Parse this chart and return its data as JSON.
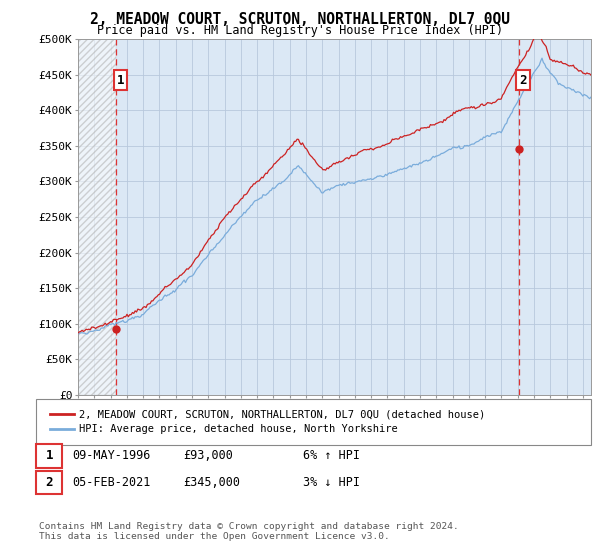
{
  "title": "2, MEADOW COURT, SCRUTON, NORTHALLERTON, DL7 0QU",
  "subtitle": "Price paid vs. HM Land Registry's House Price Index (HPI)",
  "ylim": [
    0,
    500000
  ],
  "yticks": [
    0,
    50000,
    100000,
    150000,
    200000,
    250000,
    300000,
    350000,
    400000,
    450000,
    500000
  ],
  "ytick_labels": [
    "£0",
    "£50K",
    "£100K",
    "£150K",
    "£200K",
    "£250K",
    "£300K",
    "£350K",
    "£400K",
    "£450K",
    "£500K"
  ],
  "xlim_start": 1994.0,
  "xlim_end": 2025.5,
  "hpi_color": "#7aacdb",
  "price_color": "#cc2222",
  "dashed_color": "#dd3333",
  "point1_x": 1996.36,
  "point1_y": 93000,
  "point1_label": "1",
  "point2_x": 2021.09,
  "point2_y": 345000,
  "point2_label": "2",
  "sale1_date": "09-MAY-1996",
  "sale1_price": "£93,000",
  "sale1_hpi": "6% ↑ HPI",
  "sale2_date": "05-FEB-2021",
  "sale2_price": "£345,000",
  "sale2_hpi": "3% ↓ HPI",
  "legend_line1": "2, MEADOW COURT, SCRUTON, NORTHALLERTON, DL7 0QU (detached house)",
  "legend_line2": "HPI: Average price, detached house, North Yorkshire",
  "footer": "Contains HM Land Registry data © Crown copyright and database right 2024.\nThis data is licensed under the Open Government Licence v3.0.",
  "background_color": "#ffffff",
  "plot_bg_color": "#dbe8f5",
  "hatch_bg_color": "#e8e8e8"
}
